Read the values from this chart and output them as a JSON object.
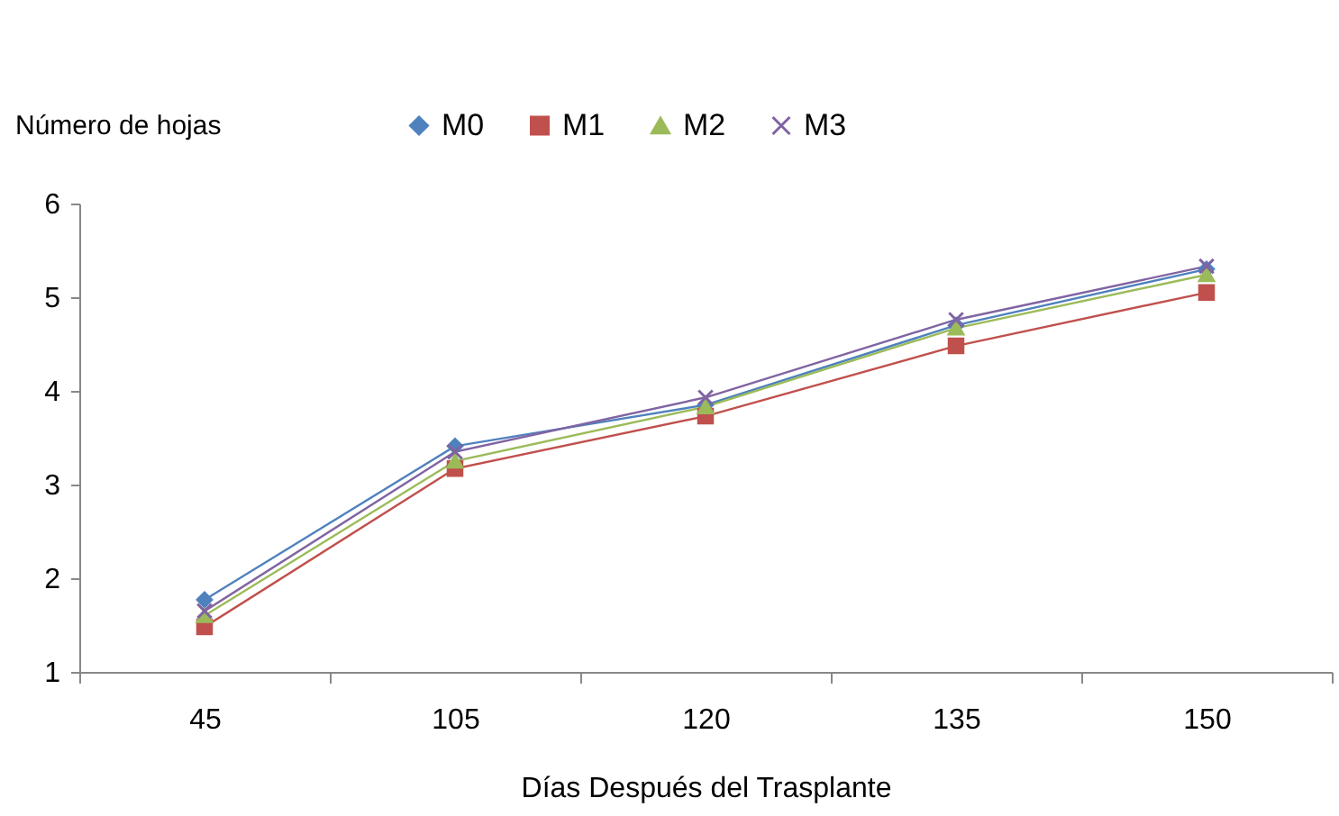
{
  "chart_data": {
    "type": "line",
    "ylabel": "Número de hojas",
    "xlabel": "Días Después del Trasplante",
    "categories": [
      "45",
      "105",
      "120",
      "135",
      "150"
    ],
    "ylim": [
      1,
      6
    ],
    "yticks": [
      1,
      2,
      3,
      4,
      5,
      6
    ],
    "grid": false,
    "legend": "top",
    "series": [
      {
        "name": "M0",
        "color": "#4f81bd",
        "marker": "diamond",
        "values": [
          1.77,
          3.41,
          3.85,
          4.7,
          5.3
        ]
      },
      {
        "name": "M1",
        "color": "#c0504d",
        "marker": "square",
        "values": [
          1.48,
          3.17,
          3.73,
          4.48,
          5.05
        ]
      },
      {
        "name": "M2",
        "color": "#9bbb59",
        "marker": "triangle",
        "values": [
          1.6,
          3.25,
          3.83,
          4.67,
          5.24
        ]
      },
      {
        "name": "M3",
        "color": "#8064a2",
        "marker": "cross",
        "values": [
          1.65,
          3.35,
          3.93,
          4.76,
          5.33
        ]
      }
    ]
  }
}
